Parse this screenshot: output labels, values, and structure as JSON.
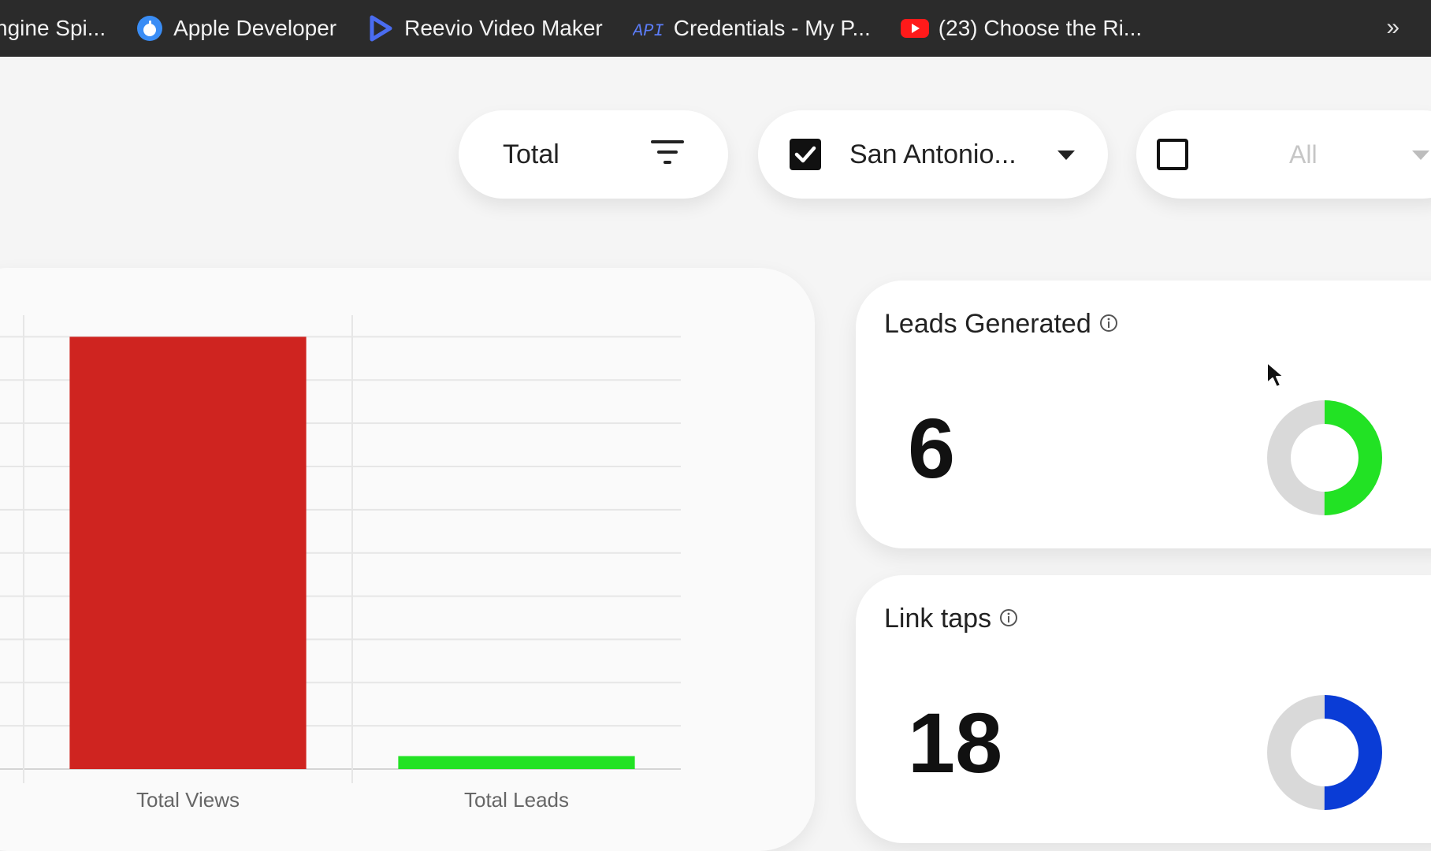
{
  "bookmarks": [
    {
      "label": "ngine Spi...",
      "icon": "none"
    },
    {
      "label": "Apple Developer",
      "icon": "apple-logo-icon"
    },
    {
      "label": "Reevio Video Maker",
      "icon": "play-triangle-icon"
    },
    {
      "label": "Credentials - My P...",
      "icon": "api-icon"
    },
    {
      "label": "(23) Choose the Ri...",
      "icon": "youtube-icon"
    }
  ],
  "api_icon_text": "API",
  "overflow_symbol": "»",
  "filters": {
    "total_label": "Total",
    "city_label": "San Antonio...",
    "city_checked": true,
    "all_label": "All",
    "all_checked": false
  },
  "chart_data": {
    "type": "bar",
    "categories": [
      "Total Views",
      "Total Leads"
    ],
    "values": [
      100,
      3
    ],
    "colors": [
      "#cf2420",
      "#22e224"
    ],
    "ylim": [
      0,
      105
    ],
    "grid": true
  },
  "cards": {
    "leads": {
      "title": "Leads Generated",
      "value": "6",
      "ring_fraction": 0.5,
      "ring_color": "#22e224",
      "track_color": "#d9d9d9"
    },
    "taps": {
      "title": "Link taps",
      "value": "18",
      "ring_fraction": 0.5,
      "ring_color": "#0a3cd6",
      "track_color": "#d9d9d9"
    }
  },
  "colors": {
    "bookmarks_bg": "#2b2b2b",
    "page_bg": "#f5f5f5"
  }
}
